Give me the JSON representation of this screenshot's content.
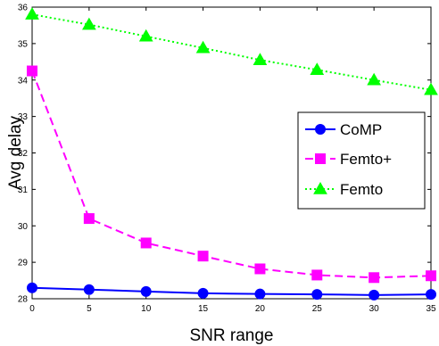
{
  "chart_data": {
    "type": "line",
    "title": "",
    "xlabel": "SNR range",
    "ylabel": "Avg delay",
    "x": [
      0,
      5,
      10,
      15,
      20,
      25,
      30,
      35
    ],
    "xlim": [
      0,
      35
    ],
    "ylim": [
      28,
      36
    ],
    "xticks": [
      0,
      5,
      10,
      15,
      20,
      25,
      30,
      35
    ],
    "yticks": [
      28,
      29,
      30,
      31,
      32,
      33,
      34,
      35,
      36
    ],
    "grid": false,
    "legend_position": "center-right",
    "series": [
      {
        "name": "CoMP",
        "values": [
          28.3,
          28.25,
          28.2,
          28.15,
          28.13,
          28.12,
          28.1,
          28.12
        ],
        "color": "#0000ff",
        "line": "solid",
        "marker": "circle"
      },
      {
        "name": "Femto+",
        "values": [
          34.25,
          30.2,
          29.53,
          29.17,
          28.82,
          28.65,
          28.58,
          28.63
        ],
        "color": "#ff00ff",
        "line": "dashed",
        "marker": "square"
      },
      {
        "name": "Femto",
        "values": [
          35.8,
          35.52,
          35.2,
          34.88,
          34.55,
          34.28,
          34.0,
          33.73
        ],
        "color": "#00ff00",
        "line": "dotted",
        "marker": "triangle"
      }
    ]
  }
}
